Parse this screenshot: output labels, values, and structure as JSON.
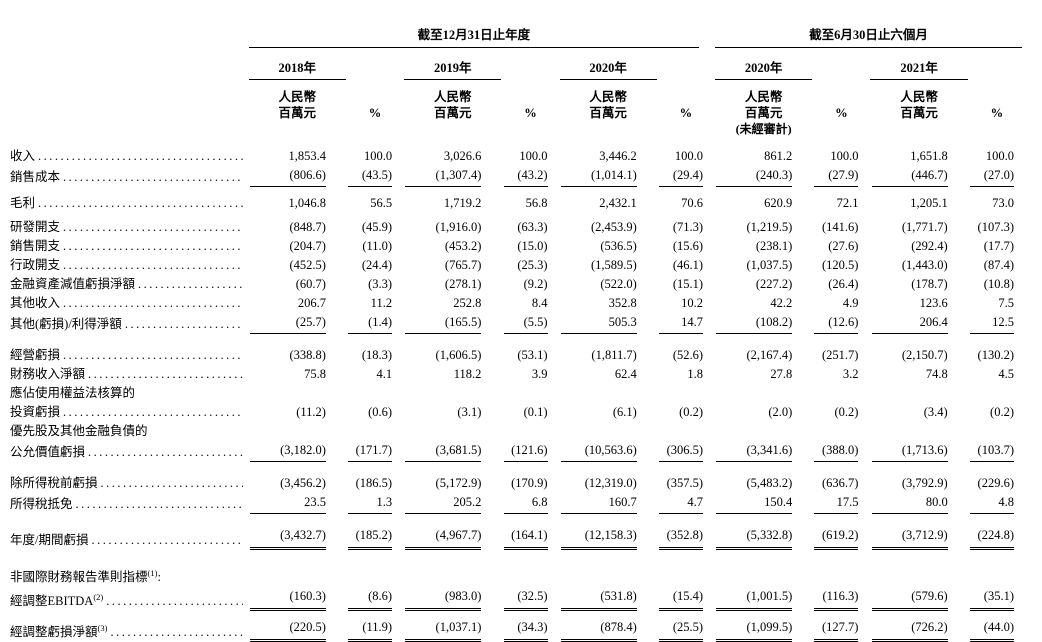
{
  "meta": {
    "background": "#ffffff",
    "text_color": "#000000"
  },
  "table": {
    "groups": [
      {
        "label": "截至12月31日止年度",
        "periods": 3
      },
      {
        "label": "截至6月30日止六個月",
        "periods": 2
      }
    ],
    "periods": [
      {
        "year": "2018年",
        "unit_line1": "人民幣",
        "unit_line2": "百萬元",
        "pct_label": "%",
        "note": ""
      },
      {
        "year": "2019年",
        "unit_line1": "人民幣",
        "unit_line2": "百萬元",
        "pct_label": "%",
        "note": ""
      },
      {
        "year": "2020年",
        "unit_line1": "人民幣",
        "unit_line2": "百萬元",
        "pct_label": "%",
        "note": ""
      },
      {
        "year": "2020年",
        "unit_line1": "人民幣",
        "unit_line2": "百萬元",
        "pct_label": "%",
        "note": "(未經審計)"
      },
      {
        "year": "2021年",
        "unit_line1": "人民幣",
        "unit_line2": "百萬元",
        "pct_label": "%",
        "note": ""
      }
    ],
    "rows": [
      {
        "type": "data",
        "label": "收入",
        "leaders": true,
        "bold": false,
        "underline": "none",
        "values": [
          "1,853.4",
          "100.0",
          "3,026.6",
          "100.0",
          "3,446.2",
          "100.0",
          "861.2",
          "100.0",
          "1,651.8",
          "100.0"
        ]
      },
      {
        "type": "data",
        "label": "銷售成本",
        "leaders": true,
        "bold": false,
        "underline": "single",
        "values": [
          "(806.6)",
          "(43.5)",
          "(1,307.4)",
          "(43.2)",
          "(1,014.1)",
          "(29.4)",
          "(240.3)",
          "(27.9)",
          "(446.7)",
          "(27.0)"
        ]
      },
      {
        "type": "spacer",
        "h": 7
      },
      {
        "type": "data",
        "label": "毛利",
        "leaders": true,
        "bold": true,
        "underline": "none",
        "values": [
          "1,046.8",
          "56.5",
          "1,719.2",
          "56.8",
          "2,432.1",
          "70.6",
          "620.9",
          "72.1",
          "1,205.1",
          "73.0"
        ]
      },
      {
        "type": "spacer",
        "h": 5
      },
      {
        "type": "data",
        "label": "研發開支",
        "leaders": true,
        "bold": false,
        "underline": "none",
        "values": [
          "(848.7)",
          "(45.9)",
          "(1,916.0)",
          "(63.3)",
          "(2,453.9)",
          "(71.3)",
          "(1,219.5)",
          "(141.6)",
          "(1,771.7)",
          "(107.3)"
        ]
      },
      {
        "type": "data",
        "label": "銷售開支",
        "leaders": true,
        "bold": false,
        "underline": "none",
        "values": [
          "(204.7)",
          "(11.0)",
          "(453.2)",
          "(15.0)",
          "(536.5)",
          "(15.6)",
          "(238.1)",
          "(27.6)",
          "(292.4)",
          "(17.7)"
        ]
      },
      {
        "type": "data",
        "label": "行政開支",
        "leaders": true,
        "bold": false,
        "underline": "none",
        "values": [
          "(452.5)",
          "(24.4)",
          "(765.7)",
          "(25.3)",
          "(1,589.5)",
          "(46.1)",
          "(1,037.5)",
          "(120.5)",
          "(1,443.0)",
          "(87.4)"
        ]
      },
      {
        "type": "data",
        "label": "金融資產減值虧損淨額",
        "leaders": true,
        "bold": false,
        "underline": "none",
        "values": [
          "(60.7)",
          "(3.3)",
          "(278.1)",
          "(9.2)",
          "(522.0)",
          "(15.1)",
          "(227.2)",
          "(26.4)",
          "(178.7)",
          "(10.8)"
        ]
      },
      {
        "type": "data",
        "label": "其他收入",
        "leaders": true,
        "bold": false,
        "underline": "none",
        "values": [
          "206.7",
          "11.2",
          "252.8",
          "8.4",
          "352.8",
          "10.2",
          "42.2",
          "4.9",
          "123.6",
          "7.5"
        ]
      },
      {
        "type": "data",
        "label": "其他(虧損)/利得淨額",
        "leaders": true,
        "bold": false,
        "underline": "single",
        "values": [
          "(25.7)",
          "(1.4)",
          "(165.5)",
          "(5.5)",
          "505.3",
          "14.7",
          "(108.2)",
          "(12.6)",
          "206.4",
          "12.5"
        ]
      },
      {
        "type": "spacer",
        "h": 12
      },
      {
        "type": "data",
        "label": "經營虧損",
        "leaders": true,
        "bold": true,
        "underline": "none",
        "values": [
          "(338.8)",
          "(18.3)",
          "(1,606.5)",
          "(53.1)",
          "(1,811.7)",
          "(52.6)",
          "(2,167.4)",
          "(251.7)",
          "(2,150.7)",
          "(130.2)"
        ]
      },
      {
        "type": "data",
        "label": "財務收入淨額",
        "leaders": true,
        "bold": false,
        "underline": "none",
        "values": [
          "75.8",
          "4.1",
          "118.2",
          "3.9",
          "62.4",
          "1.8",
          "27.8",
          "3.2",
          "74.8",
          "4.5"
        ]
      },
      {
        "type": "label",
        "label": "應佔使用權益法核算的",
        "leaders": false,
        "bold": false,
        "underline": "none"
      },
      {
        "type": "data",
        "label": "投資虧損",
        "leaders": true,
        "bold": false,
        "underline": "none",
        "values": [
          "(11.2)",
          "(0.6)",
          "(3.1)",
          "(0.1)",
          "(6.1)",
          "(0.2)",
          "(2.0)",
          "(0.2)",
          "(3.4)",
          "(0.2)"
        ]
      },
      {
        "type": "label",
        "label": "優先股及其他金融負債的",
        "leaders": false,
        "bold": false,
        "underline": "none"
      },
      {
        "type": "data",
        "label": "公允價值虧損",
        "leaders": true,
        "bold": false,
        "underline": "single",
        "values": [
          "(3,182.0)",
          "(171.7)",
          "(3,681.5)",
          "(121.6)",
          "(10,563.6)",
          "(306.5)",
          "(3,341.6)",
          "(388.0)",
          "(1,713.6)",
          "(103.7)"
        ]
      },
      {
        "type": "spacer",
        "h": 12
      },
      {
        "type": "data",
        "label": "除所得稅前虧損",
        "leaders": true,
        "bold": true,
        "underline": "none",
        "values": [
          "(3,456.2)",
          "(186.5)",
          "(5,172.9)",
          "(170.9)",
          "(12,319.0)",
          "(357.5)",
          "(5,483.2)",
          "(636.7)",
          "(3,792.9)",
          "(229.6)"
        ]
      },
      {
        "type": "data",
        "label": "所得稅抵免",
        "leaders": true,
        "bold": false,
        "underline": "single",
        "values": [
          "23.5",
          "1.3",
          "205.2",
          "6.8",
          "160.7",
          "4.7",
          "150.4",
          "17.5",
          "80.0",
          "4.8"
        ]
      },
      {
        "type": "spacer",
        "h": 12
      },
      {
        "type": "data",
        "label": "年度/期間虧損",
        "leaders": true,
        "bold": true,
        "underline": "double",
        "values": [
          "(3,432.7)",
          "(185.2)",
          "(4,967.7)",
          "(164.1)",
          "(12,158.3)",
          "(352.8)",
          "(5,332.8)",
          "(619.2)",
          "(3,712.9)",
          "(224.8)"
        ]
      },
      {
        "type": "spacer",
        "h": 18
      },
      {
        "type": "label",
        "label": "非國際財務報告準則指標",
        "sup": "(1)",
        "suffix": ":",
        "leaders": false,
        "bold": true,
        "underline": "none"
      },
      {
        "type": "data",
        "label": "經調整EBITDA",
        "sup": "(2)",
        "leaders": true,
        "bold": true,
        "underline": "double",
        "values": [
          "(160.3)",
          "(8.6)",
          "(983.0)",
          "(32.5)",
          "(531.8)",
          "(15.4)",
          "(1,001.5)",
          "(116.3)",
          "(579.6)",
          "(35.1)"
        ]
      },
      {
        "type": "spacer",
        "h": 7
      },
      {
        "type": "data",
        "label": "經調整虧損淨額",
        "sup": "(3)",
        "leaders": true,
        "bold": true,
        "underline": "double",
        "values": [
          "(220.5)",
          "(11.9)",
          "(1,037.1)",
          "(34.3)",
          "(878.4)",
          "(25.5)",
          "(1,099.5)",
          "(127.7)",
          "(726.2)",
          "(44.0)"
        ]
      }
    ]
  }
}
